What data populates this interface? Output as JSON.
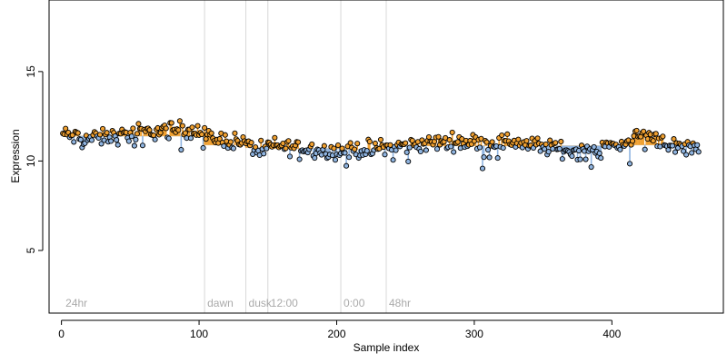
{
  "chart_data": {
    "type": "scatter",
    "title": "",
    "xlabel": "Sample index",
    "ylabel": "Expression",
    "xlim": [
      -9,
      481
    ],
    "ylim": [
      1.5,
      19
    ],
    "xticks": [
      0,
      100,
      200,
      300,
      400
    ],
    "yticks": [
      5,
      10,
      15
    ],
    "grid": false,
    "legend": "none",
    "n_points": 463,
    "baseline_segments": [
      {
        "start": 1,
        "end": 104,
        "value": 11.4
      },
      {
        "start": 104,
        "end": 134,
        "value": 10.9
      },
      {
        "start": 134,
        "end": 150,
        "value": 10.75
      },
      {
        "start": 150,
        "end": 203,
        "value": 10.7
      },
      {
        "start": 203,
        "end": 236,
        "value": 10.65
      },
      {
        "start": 236,
        "end": 400,
        "value": 10.85
      },
      {
        "start": 400,
        "end": 463,
        "value": 10.9
      }
    ],
    "level_profile": [
      [
        1,
        11.5
      ],
      [
        15,
        11.25
      ],
      [
        30,
        11.3
      ],
      [
        45,
        11.45
      ],
      [
        60,
        11.6
      ],
      [
        80,
        11.75
      ],
      [
        95,
        11.8
      ],
      [
        104,
        11.4
      ],
      [
        115,
        11.2
      ],
      [
        130,
        11.1
      ],
      [
        140,
        10.7
      ],
      [
        155,
        10.85
      ],
      [
        175,
        10.75
      ],
      [
        195,
        10.55
      ],
      [
        215,
        10.6
      ],
      [
        236,
        10.75
      ],
      [
        255,
        10.9
      ],
      [
        275,
        11.05
      ],
      [
        290,
        11.1
      ],
      [
        310,
        11.0
      ],
      [
        330,
        11.1
      ],
      [
        340,
        10.9
      ],
      [
        355,
        10.75
      ],
      [
        370,
        10.55
      ],
      [
        385,
        10.6
      ],
      [
        400,
        10.85
      ],
      [
        412,
        11.05
      ],
      [
        420,
        11.5
      ],
      [
        432,
        11.35
      ],
      [
        445,
        10.8
      ],
      [
        463,
        10.75
      ]
    ],
    "vertical_markers": [
      {
        "x": 1,
        "label": "24hr",
        "line": false
      },
      {
        "x": 104,
        "label": "dawn",
        "line": true
      },
      {
        "x": 134,
        "label": "dusk",
        "line": true
      },
      {
        "x": 150,
        "label": "12:00",
        "line": true
      },
      {
        "x": 203,
        "label": "0:00",
        "line": true
      },
      {
        "x": 236,
        "label": "48hr",
        "line": true
      }
    ],
    "colors": {
      "above_baseline": "#f0a030",
      "below_baseline": "#8fb4e0",
      "point_stroke": "#000000",
      "marker_line": "#d8d8d8",
      "marker_text": "#aaaaaa"
    }
  }
}
